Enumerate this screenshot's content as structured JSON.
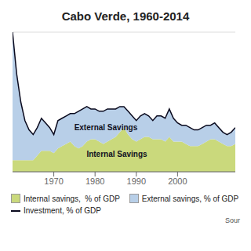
{
  "chart_data": {
    "type": "area",
    "title": "Cabo Verde, 1960-2014",
    "x": [
      1960,
      1961,
      1962,
      1963,
      1964,
      1965,
      1966,
      1967,
      1968,
      1969,
      1970,
      1971,
      1972,
      1973,
      1974,
      1975,
      1976,
      1977,
      1978,
      1979,
      1980,
      1981,
      1982,
      1983,
      1984,
      1985,
      1986,
      1987,
      1988,
      1989,
      1990,
      1991,
      1992,
      1993,
      1994,
      1995,
      1996,
      1997,
      1998,
      1999,
      2000,
      2001,
      2002,
      2003,
      2004,
      2005,
      2006,
      2007,
      2008,
      2009,
      2010,
      2011,
      2012,
      2013,
      2014
    ],
    "series": [
      {
        "name": "Internal savings,  % of GDP",
        "type": "area",
        "color": "#cad97c",
        "values": [
          5,
          5,
          5,
          5,
          5,
          5,
          7,
          9,
          9,
          9,
          8,
          10,
          11,
          12,
          13,
          11,
          10,
          11,
          13,
          14,
          14,
          13,
          12,
          13,
          14,
          15,
          17,
          19,
          16,
          14,
          13,
          14,
          15,
          15,
          14,
          14,
          14,
          13,
          15,
          13,
          13,
          13,
          12,
          11,
          11,
          11,
          12,
          13,
          14,
          14,
          13,
          12,
          11,
          11,
          12
        ]
      },
      {
        "name": "External savings, % of GDP",
        "type": "area",
        "color": "#b8cfe8",
        "values": [
          55,
          37,
          25,
          17,
          13,
          11,
          12,
          14,
          12,
          10,
          8,
          12,
          12,
          12,
          12,
          14,
          16,
          16,
          15,
          13,
          13,
          13,
          14,
          14,
          13,
          12,
          11,
          9,
          10,
          10,
          9,
          10,
          10,
          9,
          8,
          10,
          10,
          10,
          12,
          10,
          8,
          7,
          8,
          8,
          7,
          7,
          7,
          7,
          6,
          7,
          6,
          5,
          5,
          6,
          7
        ]
      },
      {
        "name": "Investment, % of GDP",
        "type": "line",
        "color": "#0a0a1e",
        "values": [
          60,
          42,
          30,
          22,
          18,
          16,
          19,
          23,
          21,
          19,
          16,
          22,
          23,
          24,
          25,
          25,
          26,
          27,
          28,
          27,
          27,
          26,
          26,
          27,
          27,
          27,
          28,
          28,
          26,
          24,
          22,
          24,
          25,
          24,
          22,
          24,
          24,
          23,
          27,
          23,
          21,
          20,
          20,
          19,
          18,
          18,
          19,
          20,
          20,
          21,
          19,
          17,
          16,
          17,
          19
        ]
      }
    ],
    "stacked": true,
    "annotations": [
      {
        "text": "External Savings",
        "x": 1974,
        "y": 19
      },
      {
        "text": "Internal Savings",
        "x": 1977,
        "y": 7.5
      }
    ],
    "source": "Sour",
    "xlim": [
      1960,
      2014
    ],
    "xticks": [
      1970,
      1980,
      1990,
      2000
    ],
    "ylim": [
      0,
      60
    ],
    "yticks": [
      0,
      10,
      20,
      30,
      40,
      50,
      60
    ],
    "grid": true,
    "tick_labels": "x",
    "legend": "bottom"
  }
}
